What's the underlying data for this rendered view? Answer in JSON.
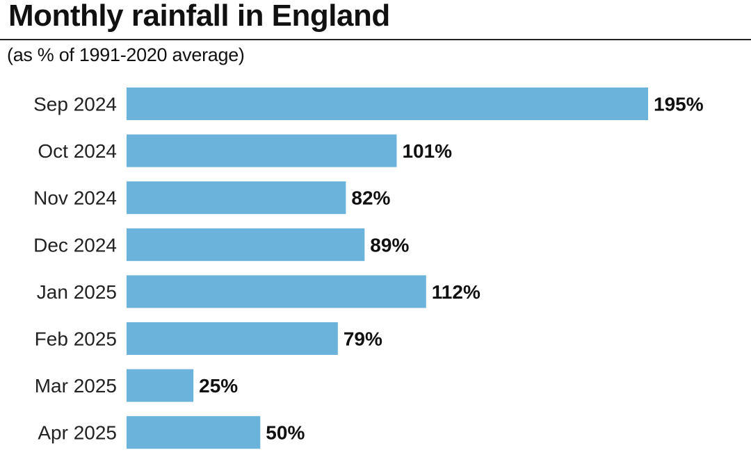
{
  "colors": {
    "bar": "#6bb3db",
    "text": "#111111"
  },
  "chart_data": {
    "type": "bar",
    "orientation": "horizontal",
    "title": "Monthly rainfall in England",
    "subtitle": "(as % of 1991-2020 average)",
    "categories": [
      "Sep 2024",
      "Oct 2024",
      "Nov 2024",
      "Dec 2024",
      "Jan 2025",
      "Feb 2025",
      "Mar 2025",
      "Apr 2025"
    ],
    "values": [
      195,
      101,
      82,
      89,
      112,
      79,
      25,
      50
    ],
    "value_labels": [
      "195%",
      "101%",
      "82%",
      "89%",
      "112%",
      "79%",
      "25%",
      "50%"
    ],
    "xlim": [
      0,
      195
    ],
    "grid": false,
    "legend": "none"
  }
}
